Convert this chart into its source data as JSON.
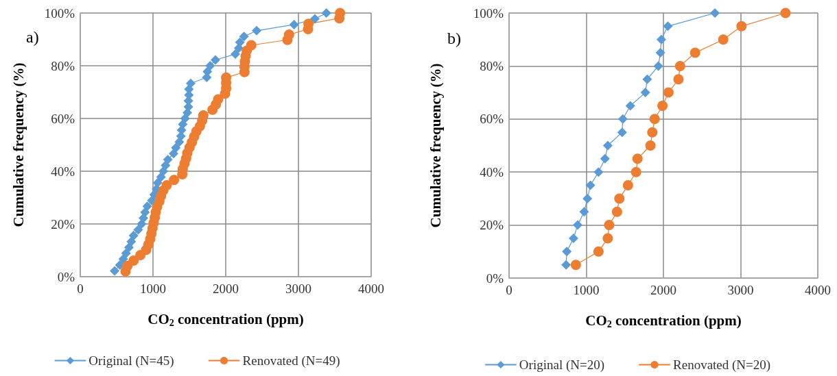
{
  "chart_data": [
    {
      "type": "line",
      "xlabel": "CO$_{2}$ concentration (ppm)",
      "ylabel": "Cumulative frequency (%)",
      "annotations": [
        "a)"
      ],
      "xlim": [
        0,
        4000
      ],
      "xticks": [
        0,
        1000,
        2000,
        3000,
        4000
      ],
      "ylim": [
        0,
        100
      ],
      "yticks": [
        {
          "value": 0,
          "label": "0%"
        },
        {
          "value": 20,
          "label": "20%"
        },
        {
          "value": 40,
          "label": "40%"
        },
        {
          "value": 60,
          "label": "60%"
        },
        {
          "value": 80,
          "label": "80%"
        },
        {
          "value": 100,
          "label": "100%"
        }
      ],
      "grid": true,
      "legend": "bottom",
      "line_style": "solid",
      "series": [
        {
          "name": "Original (N=45)",
          "color": "#5b9bd5",
          "marker": "diamond",
          "x": [
            472,
            544,
            591,
            629,
            670,
            701,
            733,
            796,
            843,
            868,
            890,
            921,
            984,
            1016,
            1047,
            1063,
            1110,
            1142,
            1173,
            1204,
            1283,
            1314,
            1362,
            1384,
            1393,
            1409,
            1440,
            1472,
            1487,
            1487,
            1494,
            1494,
            1519,
            1739,
            1748,
            1786,
            1858,
            2132,
            2179,
            2195,
            2252,
            2425,
            2940,
            3226,
            3384
          ],
          "values": [
            2.2,
            4.4,
            6.7,
            8.9,
            11.1,
            13.3,
            15.6,
            17.8,
            20.0,
            22.2,
            24.4,
            26.7,
            28.9,
            31.1,
            33.3,
            35.6,
            37.8,
            40.0,
            42.2,
            44.4,
            46.7,
            48.9,
            51.1,
            53.3,
            55.6,
            57.8,
            60.0,
            62.2,
            64.4,
            66.7,
            68.9,
            71.1,
            73.3,
            75.6,
            77.8,
            80.0,
            82.2,
            84.4,
            86.7,
            88.9,
            91.1,
            93.3,
            95.6,
            97.8,
            100
          ]
        },
        {
          "name": "Renovated (N=49)",
          "color": "#ed7d31",
          "marker": "circle",
          "x": [
            623,
            648,
            733,
            827,
            906,
            937,
            962,
            978,
            994,
            1009,
            1025,
            1038,
            1057,
            1088,
            1110,
            1142,
            1189,
            1289,
            1403,
            1409,
            1434,
            1456,
            1472,
            1503,
            1535,
            1566,
            1597,
            1645,
            1676,
            1692,
            1818,
            1865,
            1896,
            1991,
            2006,
            2006,
            2006,
            2258,
            2258,
            2264,
            2274,
            2289,
            2352,
            2849,
            2871,
            3132,
            3138,
            3563,
            3572
          ],
          "values": [
            2.0,
            4.1,
            6.1,
            8.2,
            10.2,
            12.2,
            14.3,
            16.3,
            18.4,
            20.4,
            22.4,
            24.5,
            26.5,
            28.6,
            30.6,
            32.7,
            34.7,
            36.7,
            38.8,
            40.8,
            42.9,
            44.9,
            46.9,
            49.0,
            51.0,
            53.1,
            55.1,
            57.1,
            59.2,
            61.2,
            63.3,
            65.3,
            67.3,
            69.4,
            71.4,
            73.5,
            75.5,
            77.6,
            79.6,
            81.6,
            83.7,
            85.7,
            87.8,
            89.8,
            91.8,
            93.9,
            95.9,
            98.0,
            100
          ]
        }
      ]
    },
    {
      "type": "line",
      "xlabel": "CO$_{2}$ concentration (ppm)",
      "ylabel": "Cumulative frequency (%)",
      "annotations": [
        "b)"
      ],
      "xlim": [
        0,
        4000
      ],
      "xticks": [
        0,
        1000,
        2000,
        3000,
        4000
      ],
      "ylim": [
        0,
        100
      ],
      "yticks": [
        {
          "value": 0,
          "label": "0%"
        },
        {
          "value": 20,
          "label": "20%"
        },
        {
          "value": 40,
          "label": "40%"
        },
        {
          "value": 60,
          "label": "60%"
        },
        {
          "value": 80,
          "label": "80%"
        },
        {
          "value": 100,
          "label": "100%"
        }
      ],
      "grid": true,
      "legend": "bottom",
      "line_style": "solid",
      "series": [
        {
          "name": "Original (N=20)",
          "color": "#5b9bd5",
          "marker": "diamond",
          "x": [
            739,
            748,
            835,
            889,
            973,
            1015,
            1054,
            1159,
            1243,
            1279,
            1465,
            1474,
            1571,
            1766,
            1790,
            1934,
            1961,
            1973,
            2057,
            2667
          ],
          "values": [
            5,
            10,
            15,
            20,
            25,
            30,
            35,
            40,
            45,
            50,
            55,
            60,
            65,
            70,
            75,
            80,
            85,
            90,
            95,
            100
          ]
        },
        {
          "name": "Renovated (N=20)",
          "color": "#ed7d31",
          "marker": "circle",
          "x": [
            865,
            1159,
            1279,
            1297,
            1399,
            1429,
            1541,
            1646,
            1664,
            1832,
            1856,
            1886,
            1988,
            2066,
            2195,
            2216,
            2411,
            2775,
            3012,
            3582
          ],
          "values": [
            5,
            10,
            15,
            20,
            25,
            30,
            35,
            40,
            45,
            50,
            55,
            60,
            65,
            70,
            75,
            80,
            85,
            90,
            95,
            100
          ]
        }
      ]
    }
  ]
}
